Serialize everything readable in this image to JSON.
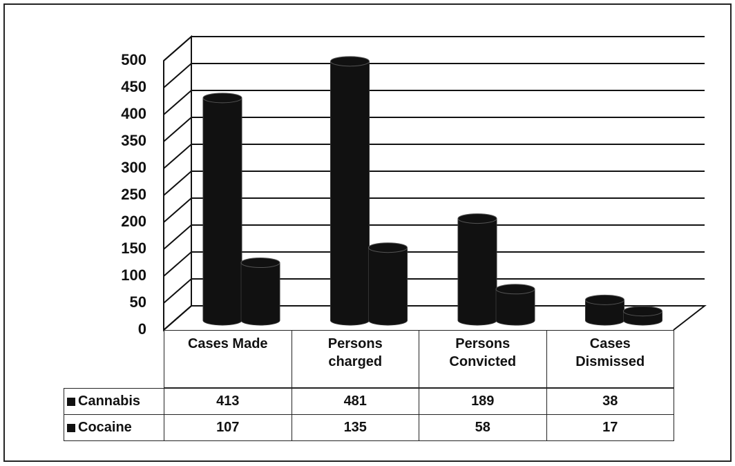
{
  "chart_data": {
    "type": "bar3d",
    "categories": [
      "Cases Made",
      "Persons charged",
      "Persons Convicted",
      "Cases Dismissed"
    ],
    "series": [
      {
        "name": "Cannabis",
        "color": "#111111",
        "values": [
          413,
          481,
          189,
          38
        ]
      },
      {
        "name": "Cocaine",
        "color": "#111111",
        "values": [
          107,
          135,
          58,
          17
        ]
      }
    ],
    "ylim": [
      0,
      500
    ],
    "yticks": [
      0,
      50,
      100,
      150,
      200,
      250,
      300,
      350,
      400,
      450,
      500
    ],
    "grid": true,
    "legend": "table"
  }
}
